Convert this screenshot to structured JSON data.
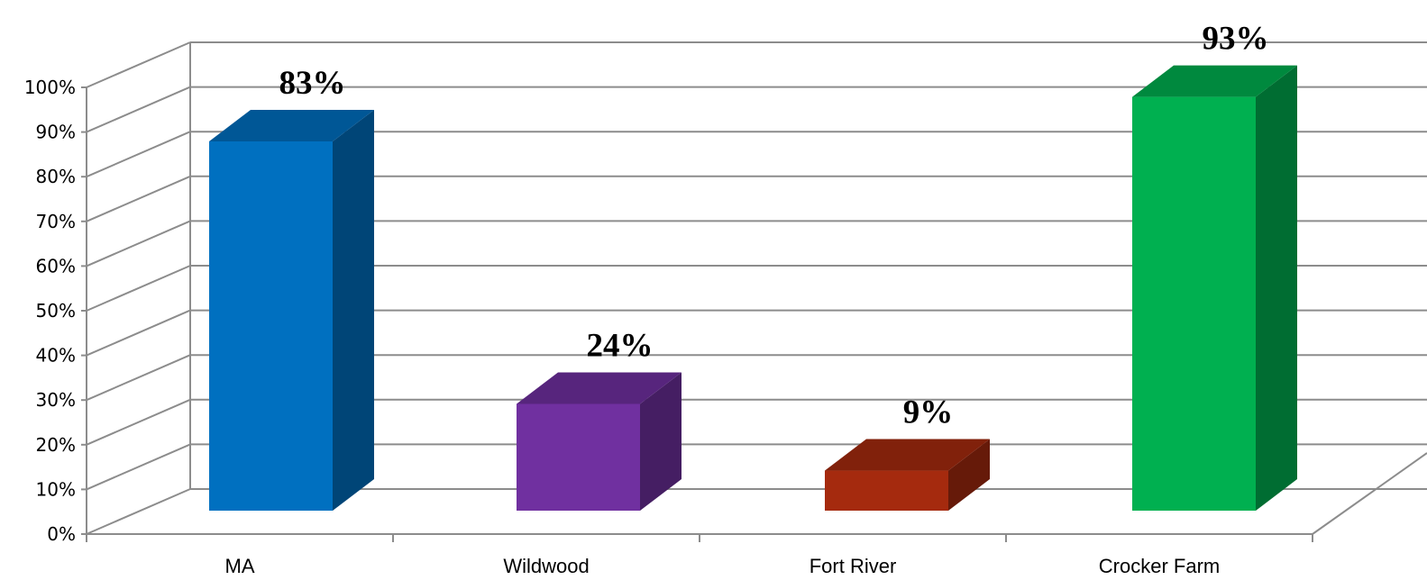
{
  "chart_data": {
    "type": "bar",
    "style": "3d-column",
    "categories": [
      "MA",
      "Wildwood",
      "Fort River",
      "Crocker Farm"
    ],
    "values": [
      83,
      24,
      9,
      93
    ],
    "value_labels": [
      "83%",
      "24%",
      "9%",
      "93%"
    ],
    "colors": [
      "#0070C0",
      "#7030A0",
      "#A52A0E",
      "#00B050"
    ],
    "ylim": [
      0,
      100
    ],
    "yticks": [
      0,
      10,
      20,
      30,
      40,
      50,
      60,
      70,
      80,
      90,
      100
    ],
    "ytick_labels": [
      "0%",
      "10%",
      "20%",
      "30%",
      "40%",
      "50%",
      "60%",
      "70%",
      "80%",
      "90%",
      "100%"
    ],
    "grid": true,
    "legend": "none",
    "title": "",
    "xlabel": "",
    "ylabel": ""
  }
}
